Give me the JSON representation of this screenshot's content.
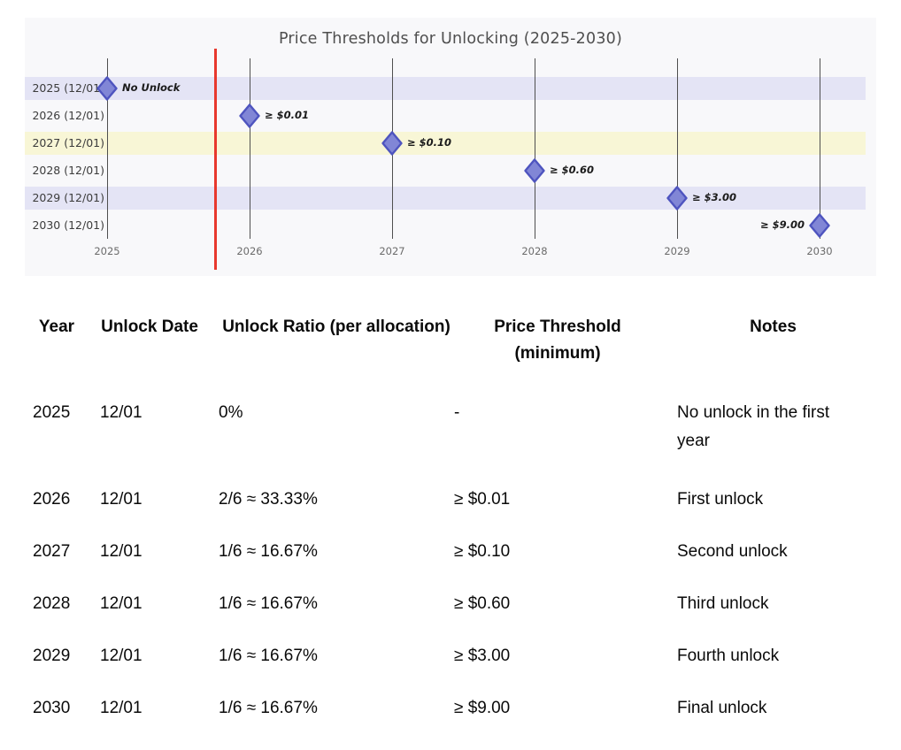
{
  "chart": {
    "title": "Price Thresholds for Unlocking (2025-2030)"
  },
  "chart_data": {
    "type": "scatter",
    "title": "Price Thresholds for Unlocking (2025-2030)",
    "xlabel": "",
    "ylabel": "",
    "x_ticks": [
      "2025",
      "2026",
      "2027",
      "2028",
      "2029",
      "2030"
    ],
    "y_categories": [
      "2025 (12/01)",
      "2026 (12/01)",
      "2027 (12/01)",
      "2028 (12/01)",
      "2029 (12/01)",
      "2030 (12/01)"
    ],
    "grid": "vertical-year-lines",
    "legend": "none",
    "points": [
      {
        "x": 2025,
        "y": "2025 (12/01)",
        "threshold": null,
        "label": "No Unlock",
        "label_side": "right"
      },
      {
        "x": 2026,
        "y": "2026 (12/01)",
        "threshold": 0.01,
        "label": "≥ $0.01",
        "label_side": "right"
      },
      {
        "x": 2027,
        "y": "2027 (12/01)",
        "threshold": 0.1,
        "label": "≥ $0.10",
        "label_side": "right"
      },
      {
        "x": 2028,
        "y": "2028 (12/01)",
        "threshold": 0.6,
        "label": "≥ $0.60",
        "label_side": "right"
      },
      {
        "x": 2029,
        "y": "2029 (12/01)",
        "threshold": 3.0,
        "label": "≥ $3.00",
        "label_side": "right"
      },
      {
        "x": 2030,
        "y": "2030 (12/01)",
        "threshold": 9.0,
        "label": "≥ $9.00",
        "label_side": "left"
      }
    ],
    "row_stripe_colors": [
      "#e4e4f5",
      "transparent",
      "#f8f6d6",
      "transparent",
      "#e4e4f5",
      "transparent"
    ],
    "vertical_reference_line": {
      "x": 2025.76,
      "color": "#e8382d"
    },
    "marker": {
      "shape": "diamond",
      "fill": "#8186d6",
      "stroke": "#4e54bf"
    }
  },
  "table": {
    "headers": [
      "Year",
      "Unlock Date",
      "Unlock Ratio (per allocation)",
      "Price Threshold (minimum)",
      "Notes"
    ],
    "rows": [
      {
        "year": "2025",
        "date": "12/01",
        "ratio": "0%",
        "threshold": "-",
        "notes": "No unlock in the first year"
      },
      {
        "year": "2026",
        "date": "12/01",
        "ratio": "2/6 ≈ 33.33%",
        "threshold": "≥ $0.01",
        "notes": "First unlock"
      },
      {
        "year": "2027",
        "date": "12/01",
        "ratio": "1/6 ≈ 16.67%",
        "threshold": "≥ $0.10",
        "notes": "Second unlock"
      },
      {
        "year": "2028",
        "date": "12/01",
        "ratio": "1/6 ≈ 16.67%",
        "threshold": "≥ $0.60",
        "notes": "Third unlock"
      },
      {
        "year": "2029",
        "date": "12/01",
        "ratio": "1/6 ≈ 16.67%",
        "threshold": "≥ $3.00",
        "notes": "Fourth unlock"
      },
      {
        "year": "2030",
        "date": "12/01",
        "ratio": "1/6 ≈ 16.67%",
        "threshold": "≥ $9.00",
        "notes": "Final unlock"
      }
    ]
  }
}
